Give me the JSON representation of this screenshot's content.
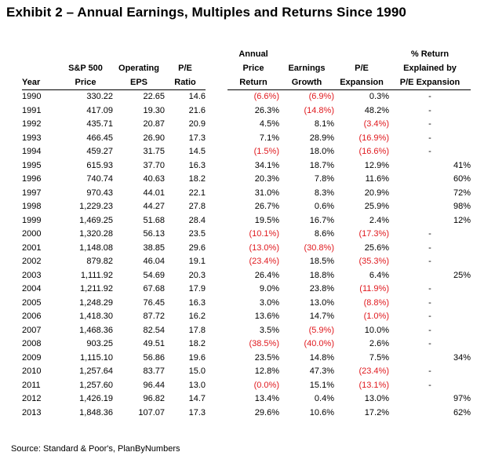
{
  "title": "Exhibit 2 – Annual Earnings, Multiples and Returns Since 1990",
  "headers": {
    "year": [
      "",
      "",
      "Year"
    ],
    "price": [
      "",
      "S&P 500",
      "Price"
    ],
    "eps": [
      "",
      "Operating",
      "EPS"
    ],
    "pe": [
      "",
      "P/E",
      "Ratio"
    ],
    "ret": [
      "Annual",
      "Price",
      "Return"
    ],
    "growth": [
      "",
      "Earnings",
      "Growth"
    ],
    "expansion": [
      "",
      "P/E",
      "Expansion"
    ],
    "explained": [
      "% Return",
      "Explained by",
      "P/E Expansion"
    ]
  },
  "rows": [
    {
      "year": "1990",
      "price": "330.22",
      "eps": "22.65",
      "pe": "14.6",
      "ret": "(6.6%)",
      "growth": "(6.9%)",
      "expansion": "0.3%",
      "explained": "-"
    },
    {
      "year": "1991",
      "price": "417.09",
      "eps": "19.30",
      "pe": "21.6",
      "ret": "26.3%",
      "growth": "(14.8%)",
      "expansion": "48.2%",
      "explained": "-"
    },
    {
      "year": "1992",
      "price": "435.71",
      "eps": "20.87",
      "pe": "20.9",
      "ret": "4.5%",
      "growth": "8.1%",
      "expansion": "(3.4%)",
      "explained": "-"
    },
    {
      "year": "1993",
      "price": "466.45",
      "eps": "26.90",
      "pe": "17.3",
      "ret": "7.1%",
      "growth": "28.9%",
      "expansion": "(16.9%)",
      "explained": "-"
    },
    {
      "year": "1994",
      "price": "459.27",
      "eps": "31.75",
      "pe": "14.5",
      "ret": "(1.5%)",
      "growth": "18.0%",
      "expansion": "(16.6%)",
      "explained": "-"
    },
    {
      "year": "1995",
      "price": "615.93",
      "eps": "37.70",
      "pe": "16.3",
      "ret": "34.1%",
      "growth": "18.7%",
      "expansion": "12.9%",
      "explained": "41%"
    },
    {
      "year": "1996",
      "price": "740.74",
      "eps": "40.63",
      "pe": "18.2",
      "ret": "20.3%",
      "growth": "7.8%",
      "expansion": "11.6%",
      "explained": "60%"
    },
    {
      "year": "1997",
      "price": "970.43",
      "eps": "44.01",
      "pe": "22.1",
      "ret": "31.0%",
      "growth": "8.3%",
      "expansion": "20.9%",
      "explained": "72%"
    },
    {
      "year": "1998",
      "price": "1,229.23",
      "eps": "44.27",
      "pe": "27.8",
      "ret": "26.7%",
      "growth": "0.6%",
      "expansion": "25.9%",
      "explained": "98%"
    },
    {
      "year": "1999",
      "price": "1,469.25",
      "eps": "51.68",
      "pe": "28.4",
      "ret": "19.5%",
      "growth": "16.7%",
      "expansion": "2.4%",
      "explained": "12%"
    },
    {
      "year": "2000",
      "price": "1,320.28",
      "eps": "56.13",
      "pe": "23.5",
      "ret": "(10.1%)",
      "growth": "8.6%",
      "expansion": "(17.3%)",
      "explained": "-"
    },
    {
      "year": "2001",
      "price": "1,148.08",
      "eps": "38.85",
      "pe": "29.6",
      "ret": "(13.0%)",
      "growth": "(30.8%)",
      "expansion": "25.6%",
      "explained": "-"
    },
    {
      "year": "2002",
      "price": "879.82",
      "eps": "46.04",
      "pe": "19.1",
      "ret": "(23.4%)",
      "growth": "18.5%",
      "expansion": "(35.3%)",
      "explained": "-"
    },
    {
      "year": "2003",
      "price": "1,111.92",
      "eps": "54.69",
      "pe": "20.3",
      "ret": "26.4%",
      "growth": "18.8%",
      "expansion": "6.4%",
      "explained": "25%"
    },
    {
      "year": "2004",
      "price": "1,211.92",
      "eps": "67.68",
      "pe": "17.9",
      "ret": "9.0%",
      "growth": "23.8%",
      "expansion": "(11.9%)",
      "explained": "-"
    },
    {
      "year": "2005",
      "price": "1,248.29",
      "eps": "76.45",
      "pe": "16.3",
      "ret": "3.0%",
      "growth": "13.0%",
      "expansion": "(8.8%)",
      "explained": "-"
    },
    {
      "year": "2006",
      "price": "1,418.30",
      "eps": "87.72",
      "pe": "16.2",
      "ret": "13.6%",
      "growth": "14.7%",
      "expansion": "(1.0%)",
      "explained": "-"
    },
    {
      "year": "2007",
      "price": "1,468.36",
      "eps": "82.54",
      "pe": "17.8",
      "ret": "3.5%",
      "growth": "(5.9%)",
      "expansion": "10.0%",
      "explained": "-"
    },
    {
      "year": "2008",
      "price": "903.25",
      "eps": "49.51",
      "pe": "18.2",
      "ret": "(38.5%)",
      "growth": "(40.0%)",
      "expansion": "2.6%",
      "explained": "-"
    },
    {
      "year": "2009",
      "price": "1,115.10",
      "eps": "56.86",
      "pe": "19.6",
      "ret": "23.5%",
      "growth": "14.8%",
      "expansion": "7.5%",
      "explained": "34%"
    },
    {
      "year": "2010",
      "price": "1,257.64",
      "eps": "83.77",
      "pe": "15.0",
      "ret": "12.8%",
      "growth": "47.3%",
      "expansion": "(23.4%)",
      "explained": "-"
    },
    {
      "year": "2011",
      "price": "1,257.60",
      "eps": "96.44",
      "pe": "13.0",
      "ret": "(0.0%)",
      "growth": "15.1%",
      "expansion": "(13.1%)",
      "explained": "-"
    },
    {
      "year": "2012",
      "price": "1,426.19",
      "eps": "96.82",
      "pe": "14.7",
      "ret": "13.4%",
      "growth": "0.4%",
      "expansion": "13.0%",
      "explained": "97%"
    },
    {
      "year": "2013",
      "price": "1,848.36",
      "eps": "107.07",
      "pe": "17.3",
      "ret": "29.6%",
      "growth": "10.6%",
      "expansion": "17.2%",
      "explained": "62%"
    }
  ],
  "colors": {
    "negative": "#e0191e",
    "text": "#000000"
  },
  "source": "Source: Standard & Poor's, PlanByNumbers"
}
